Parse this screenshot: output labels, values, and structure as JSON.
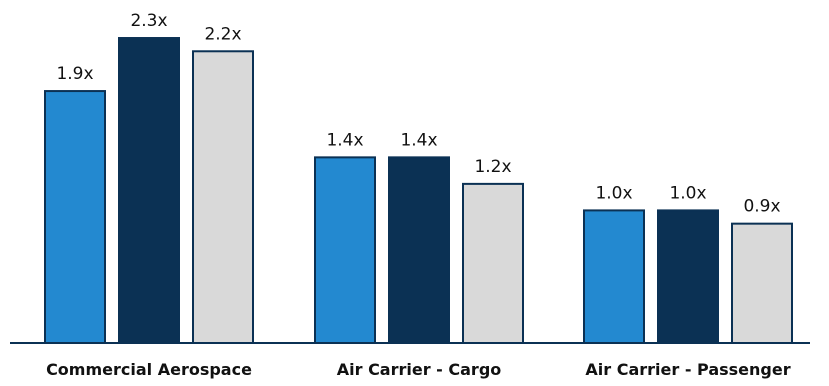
{
  "chart_data": {
    "type": "bar",
    "title": "",
    "xlabel": "",
    "ylabel": "",
    "categories": [
      "Commercial Aerospace",
      "Air Carrier - Cargo",
      "Air Carrier - Passenger"
    ],
    "series": [
      {
        "values": [
          1.9,
          1.4,
          1.0
        ],
        "labels": [
          "1.9x",
          "1.4x",
          "1.0x"
        ],
        "color": "#2389D0"
      },
      {
        "values": [
          2.3,
          1.4,
          1.0
        ],
        "labels": [
          "2.3x",
          "1.4x",
          "1.0x"
        ],
        "color": "#0B3154"
      },
      {
        "values": [
          2.2,
          1.2,
          0.9
        ],
        "labels": [
          "2.2x",
          "1.2x",
          "0.9x"
        ],
        "color": "#D9D9D9"
      }
    ],
    "ylim": [
      0,
      2.3
    ],
    "grid": false,
    "legend": "none",
    "bar_outline_color": "#0B3154",
    "axis_color": "#0B3154"
  }
}
